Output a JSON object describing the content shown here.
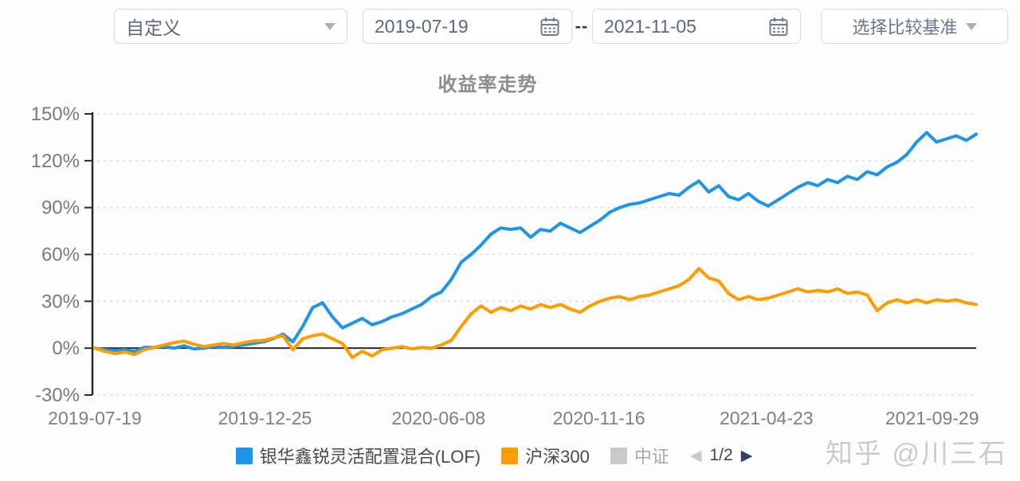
{
  "header": {
    "range_preset": "自定义",
    "date_from": "2019-07-19",
    "date_to": "2021-11-05",
    "range_separator": "--",
    "benchmark_placeholder": "选择比较基准"
  },
  "chart_data": {
    "type": "line",
    "title": "收益率走势",
    "ylim": [
      -30,
      150
    ],
    "yticks": [
      150,
      120,
      90,
      60,
      30,
      0,
      -30
    ],
    "ytick_suffix": "%",
    "grid": "dashed-horizontal",
    "legend_position": "bottom",
    "xticks": [
      {
        "label": "2019-07-19",
        "pos": 0.0
      },
      {
        "label": "2019-12-25",
        "pos": 0.193
      },
      {
        "label": "2020-06-08",
        "pos": 0.39
      },
      {
        "label": "2020-11-16",
        "pos": 0.572
      },
      {
        "label": "2021-04-23",
        "pos": 0.762
      },
      {
        "label": "2021-09-29",
        "pos": 0.95
      }
    ],
    "x_range": [
      "2019-07-19",
      "2021-11-05"
    ],
    "series": [
      {
        "name": "银华鑫锐灵活配置混合(LOF)",
        "color": "#1f94e8",
        "unit": "%",
        "values": [
          0,
          -1,
          -1.5,
          -1,
          -2,
          0.5,
          0.5,
          1,
          0,
          1.5,
          -0.5,
          0,
          1,
          0.5,
          1,
          2,
          3,
          4,
          6,
          9,
          4,
          14,
          26,
          29,
          20,
          13,
          16,
          19,
          15,
          17,
          20,
          22,
          25,
          28,
          33,
          36,
          44,
          55,
          60,
          66,
          73,
          77,
          76,
          77,
          71,
          76,
          75,
          80,
          77,
          74,
          78,
          82,
          87,
          90,
          92,
          93,
          95,
          97,
          99,
          98,
          103,
          107,
          100,
          104,
          97,
          95,
          99,
          94,
          91,
          95,
          99,
          103,
          106,
          104,
          108,
          106,
          110,
          108,
          113,
          111,
          116,
          119,
          124,
          132,
          138,
          132,
          134,
          136,
          133,
          137
        ]
      },
      {
        "name": "沪深300",
        "color": "#ff9c00",
        "unit": "%",
        "values": [
          0,
          -2,
          -3.5,
          -2.5,
          -4,
          -1,
          0.5,
          2,
          3.5,
          4.5,
          2.5,
          1,
          2,
          3,
          2,
          3.5,
          4.5,
          5,
          6.5,
          8,
          -1,
          6,
          8,
          9,
          6,
          3,
          -6,
          -2,
          -5,
          -1,
          0,
          1,
          -0.5,
          0.5,
          0,
          2,
          5,
          14,
          22,
          27,
          23,
          26,
          24,
          27,
          25,
          28,
          26,
          28,
          25,
          23,
          27,
          30,
          32,
          33,
          31,
          33,
          34,
          36,
          38,
          40,
          44,
          51,
          45,
          43,
          35,
          31,
          33,
          31,
          32,
          34,
          36,
          38,
          36,
          37,
          36,
          38,
          35,
          36,
          34,
          24,
          29,
          31,
          29,
          31,
          29,
          31,
          30,
          31,
          29,
          28
        ]
      },
      {
        "name": "中证",
        "color": "#c9c9c9",
        "values": []
      }
    ]
  },
  "legend": {
    "pagination": {
      "prev": "◀",
      "current": "1/2",
      "next": "▶"
    }
  },
  "watermark": "知乎 @川三石",
  "colors": {
    "fund_line": "#1f94e8",
    "benchmark_line": "#ff9c00",
    "inactive_series": "#c9c9c9",
    "axis_line": "#2b2b2b",
    "gridline": "#d9d9d9",
    "pagination_next": "#2e4160"
  }
}
